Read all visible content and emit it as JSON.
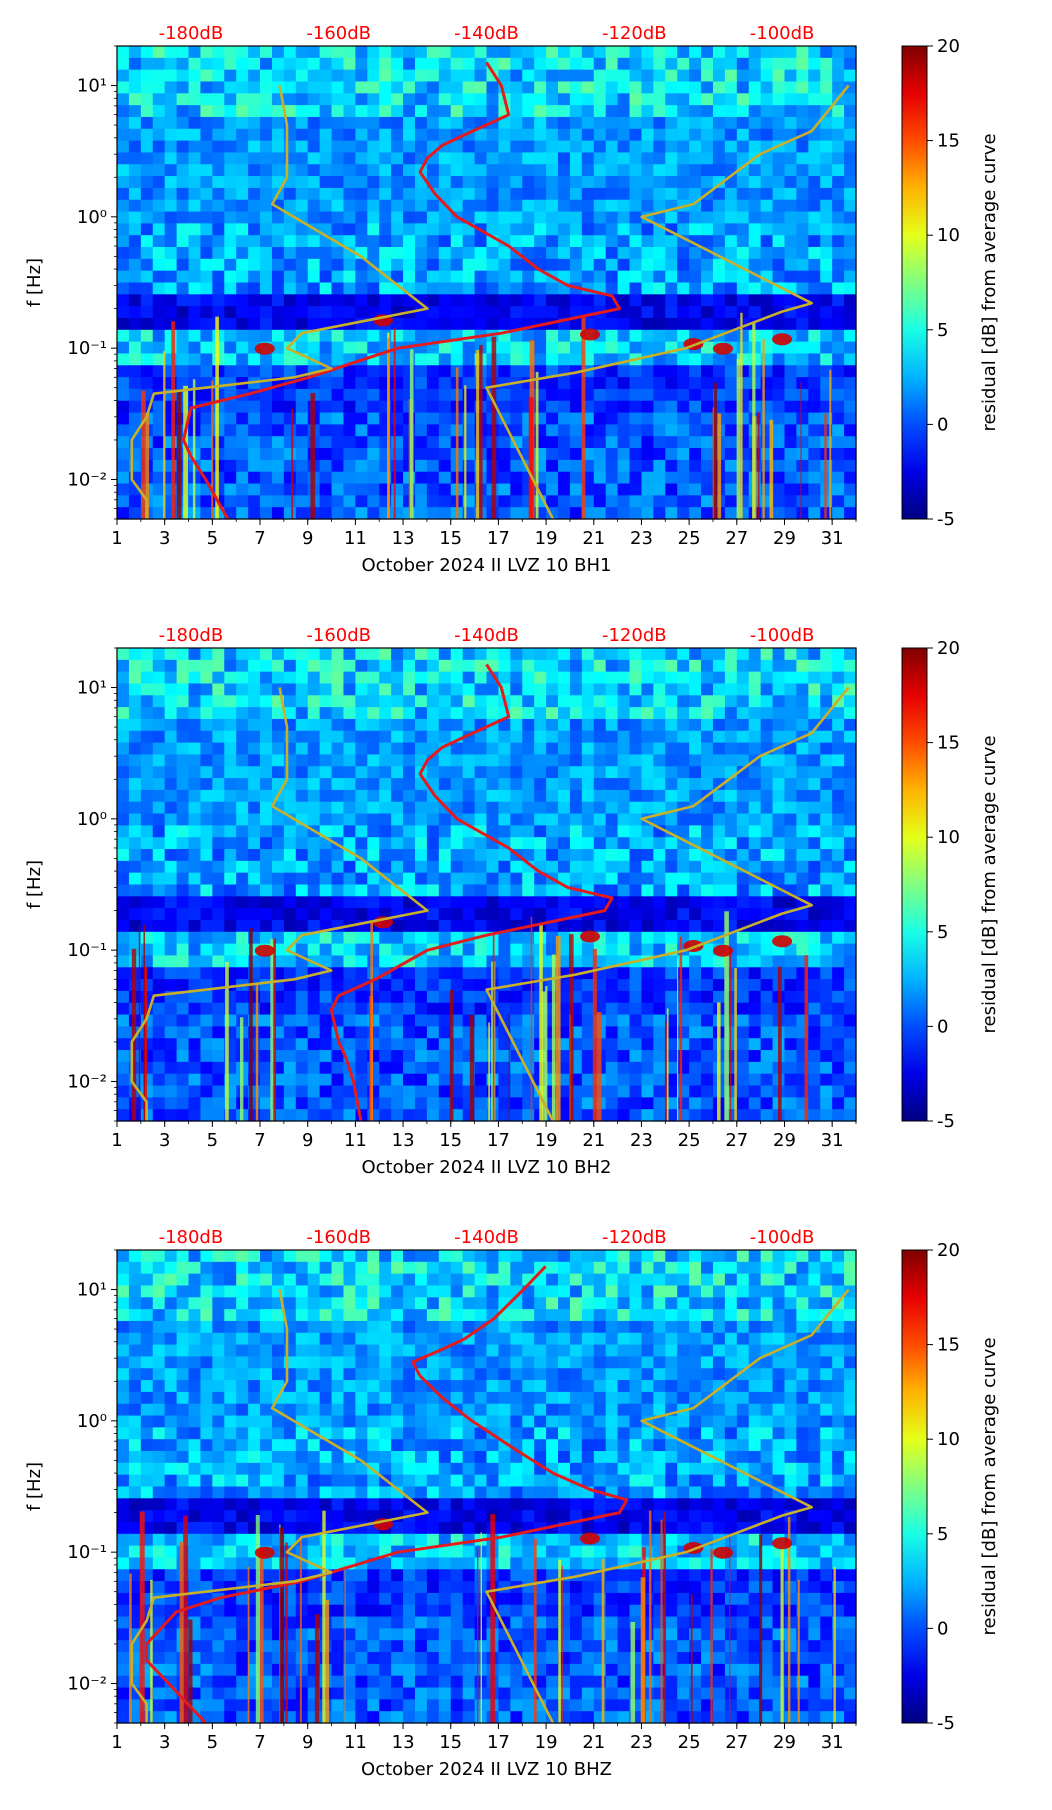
{
  "chart_data": [
    {
      "type": "heatmap",
      "title": "",
      "xlabel": "October 2024 II LVZ 10 BH1",
      "ylabel": "f [Hz]",
      "x_ticks": [
        "1",
        "3",
        "5",
        "7",
        "9",
        "11",
        "13",
        "15",
        "17",
        "19",
        "21",
        "23",
        "25",
        "27",
        "29",
        "31"
      ],
      "xlim": [
        1,
        32
      ],
      "ylim": [
        0.005,
        20
      ],
      "y_ticks": [
        {
          "label": "10⁻²",
          "value": 0.01
        },
        {
          "label": "10⁻¹",
          "value": 0.1
        },
        {
          "label": "10⁰",
          "value": 1
        },
        {
          "label": "10¹",
          "value": 10
        }
      ],
      "db_top_ticks": [
        "-180dB",
        "-160dB",
        "-140dB",
        "-120dB",
        "-100dB"
      ],
      "db_axis_range": [
        -190,
        -90
      ],
      "colorbar": {
        "label": "residual [dB] from average curve",
        "range": [
          -5,
          20
        ],
        "ticks": [
          "-5",
          "0",
          "5",
          "10",
          "15",
          "20"
        ]
      },
      "series": [
        {
          "name": "average curve",
          "color": "#e41a1c",
          "db": [
            -140,
            -138,
            -137,
            -143,
            -146,
            -148,
            -149,
            -147,
            -144,
            -137,
            -133,
            -129,
            -123,
            -122,
            -138,
            -152,
            -164,
            -172,
            -180,
            -181,
            -180,
            -178,
            -175
          ],
          "freq": [
            15,
            10,
            6,
            4.2,
            3.5,
            2.8,
            2.2,
            1.5,
            1,
            0.6,
            0.4,
            0.3,
            0.25,
            0.2,
            0.13,
            0.1,
            0.06,
            0.045,
            0.035,
            0.02,
            0.015,
            0.01,
            0.005
          ]
        },
        {
          "name": "low noise model",
          "color": "#c8b02a",
          "db": [
            -168,
            -167,
            -167,
            -169,
            -157,
            -148,
            -165,
            -167,
            -161,
            -166,
            -185,
            -186,
            -188,
            -188,
            -186,
            -186
          ],
          "freq": [
            10,
            5,
            2,
            1.25,
            0.5,
            0.2,
            0.13,
            0.1,
            0.07,
            0.06,
            0.045,
            0.03,
            0.02,
            0.01,
            0.007,
            0.005
          ]
        },
        {
          "name": "high noise model",
          "color": "#c8b02a",
          "db": [
            -91,
            -96,
            -103,
            -112,
            -112,
            -119,
            -96,
            -100,
            -113,
            -128,
            -140,
            -140,
            -131
          ],
          "freq": [
            10,
            4.5,
            3,
            1.25,
            1.25,
            1,
            0.22,
            0.19,
            0.1,
            0.065,
            0.05,
            0.05,
            0.005
          ]
        }
      ]
    },
    {
      "type": "heatmap",
      "title": "",
      "xlabel": "October 2024 II LVZ 10 BH2",
      "ylabel": "f [Hz]",
      "x_ticks": [
        "1",
        "3",
        "5",
        "7",
        "9",
        "11",
        "13",
        "15",
        "17",
        "19",
        "21",
        "23",
        "25",
        "27",
        "29",
        "31"
      ],
      "xlim": [
        1,
        32
      ],
      "ylim": [
        0.005,
        20
      ],
      "y_ticks": [
        {
          "label": "10⁻²",
          "value": 0.01
        },
        {
          "label": "10⁻¹",
          "value": 0.1
        },
        {
          "label": "10⁰",
          "value": 1
        },
        {
          "label": "10¹",
          "value": 10
        }
      ],
      "db_top_ticks": [
        "-180dB",
        "-160dB",
        "-140dB",
        "-120dB",
        "-100dB"
      ],
      "db_axis_range": [
        -190,
        -90
      ],
      "colorbar": {
        "label": "residual [dB] from average curve",
        "range": [
          -5,
          20
        ],
        "ticks": [
          "-5",
          "0",
          "5",
          "10",
          "15",
          "20"
        ]
      },
      "series": [
        {
          "name": "average curve",
          "color": "#e41a1c",
          "db": [
            -140,
            -138,
            -137,
            -143,
            -146,
            -148,
            -149,
            -147,
            -144,
            -137,
            -133,
            -129,
            -123,
            -124,
            -140,
            -148,
            -155,
            -160,
            -161,
            -160,
            -159,
            -158,
            -157
          ],
          "freq": [
            15,
            10,
            6,
            4.2,
            3.5,
            2.8,
            2.2,
            1.5,
            1,
            0.6,
            0.4,
            0.3,
            0.25,
            0.2,
            0.13,
            0.1,
            0.06,
            0.045,
            0.035,
            0.02,
            0.015,
            0.01,
            0.005
          ]
        },
        {
          "name": "low noise model",
          "color": "#c8b02a",
          "db": [
            -168,
            -167,
            -167,
            -169,
            -157,
            -148,
            -165,
            -167,
            -161,
            -166,
            -185,
            -186,
            -188,
            -188,
            -186,
            -186
          ],
          "freq": [
            10,
            5,
            2,
            1.25,
            0.5,
            0.2,
            0.13,
            0.1,
            0.07,
            0.06,
            0.045,
            0.03,
            0.02,
            0.01,
            0.007,
            0.005
          ]
        },
        {
          "name": "high noise model",
          "color": "#c8b02a",
          "db": [
            -91,
            -96,
            -103,
            -112,
            -112,
            -119,
            -96,
            -100,
            -113,
            -128,
            -140,
            -140,
            -131
          ],
          "freq": [
            10,
            4.5,
            3,
            1.25,
            1.25,
            1,
            0.22,
            0.19,
            0.1,
            0.065,
            0.05,
            0.05,
            0.005
          ]
        }
      ]
    },
    {
      "type": "heatmap",
      "title": "",
      "xlabel": "October 2024 II LVZ 10 BHZ",
      "ylabel": "f [Hz]",
      "x_ticks": [
        "1",
        "3",
        "5",
        "7",
        "9",
        "11",
        "13",
        "15",
        "17",
        "19",
        "21",
        "23",
        "25",
        "27",
        "29",
        "31"
      ],
      "xlim": [
        1,
        32
      ],
      "ylim": [
        0.005,
        20
      ],
      "y_ticks": [
        {
          "label": "10⁻²",
          "value": 0.01
        },
        {
          "label": "10⁻¹",
          "value": 0.1
        },
        {
          "label": "10⁰",
          "value": 1
        },
        {
          "label": "10¹",
          "value": 10
        }
      ],
      "db_top_ticks": [
        "-180dB",
        "-160dB",
        "-140dB",
        "-120dB",
        "-100dB"
      ],
      "db_axis_range": [
        -190,
        -90
      ],
      "colorbar": {
        "label": "residual [dB] from average curve",
        "range": [
          -5,
          20
        ],
        "ticks": [
          "-5",
          "0",
          "5",
          "10",
          "15",
          "20"
        ]
      },
      "series": [
        {
          "name": "average curve",
          "color": "#e41a1c",
          "db": [
            -132,
            -135,
            -139,
            -143,
            -146,
            -150,
            -149,
            -146,
            -142,
            -136,
            -131,
            -126,
            -121,
            -122,
            -138,
            -152,
            -165,
            -176,
            -182,
            -186,
            -186,
            -183,
            -178
          ],
          "freq": [
            15,
            10,
            6,
            4.2,
            3.5,
            2.8,
            2.2,
            1.5,
            1,
            0.6,
            0.4,
            0.3,
            0.25,
            0.2,
            0.13,
            0.1,
            0.06,
            0.045,
            0.035,
            0.02,
            0.015,
            0.01,
            0.005
          ]
        },
        {
          "name": "low noise model",
          "color": "#c8b02a",
          "db": [
            -168,
            -167,
            -167,
            -169,
            -157,
            -148,
            -165,
            -167,
            -161,
            -166,
            -185,
            -186,
            -188,
            -188,
            -186,
            -186
          ],
          "freq": [
            10,
            5,
            2,
            1.25,
            0.5,
            0.2,
            0.13,
            0.1,
            0.07,
            0.06,
            0.045,
            0.03,
            0.02,
            0.01,
            0.007,
            0.005
          ]
        },
        {
          "name": "high noise model",
          "color": "#c8b02a",
          "db": [
            -91,
            -96,
            -103,
            -112,
            -112,
            -119,
            -96,
            -100,
            -113,
            -128,
            -140,
            -140,
            -131
          ],
          "freq": [
            10,
            4.5,
            3,
            1.25,
            1.25,
            1,
            0.22,
            0.19,
            0.1,
            0.065,
            0.05,
            0.05,
            0.005
          ]
        }
      ]
    }
  ]
}
